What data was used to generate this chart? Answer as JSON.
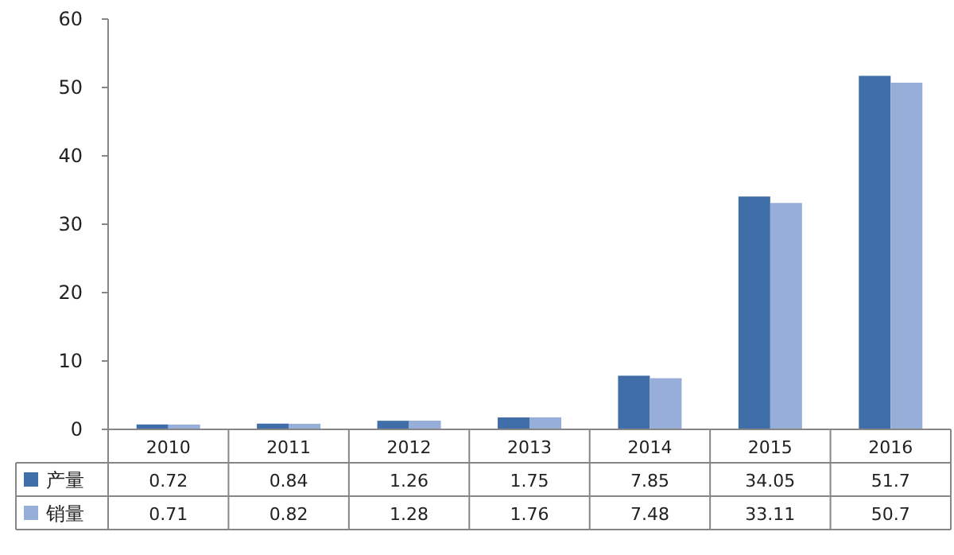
{
  "chart_data": {
    "type": "bar",
    "categories": [
      "2010",
      "2011",
      "2012",
      "2013",
      "2014",
      "2015",
      "2016"
    ],
    "series": [
      {
        "name": "产量",
        "color": "#3f6ea8",
        "values": [
          0.72,
          0.84,
          1.26,
          1.75,
          7.85,
          34.05,
          51.7
        ]
      },
      {
        "name": "销量",
        "color": "#96aed8",
        "values": [
          0.71,
          0.82,
          1.28,
          1.76,
          7.48,
          33.11,
          50.7
        ]
      }
    ],
    "ylim": [
      0,
      60
    ],
    "yticks": [
      0,
      10,
      20,
      30,
      40,
      50,
      60
    ],
    "data_labels": true,
    "legend": "bottom left"
  }
}
